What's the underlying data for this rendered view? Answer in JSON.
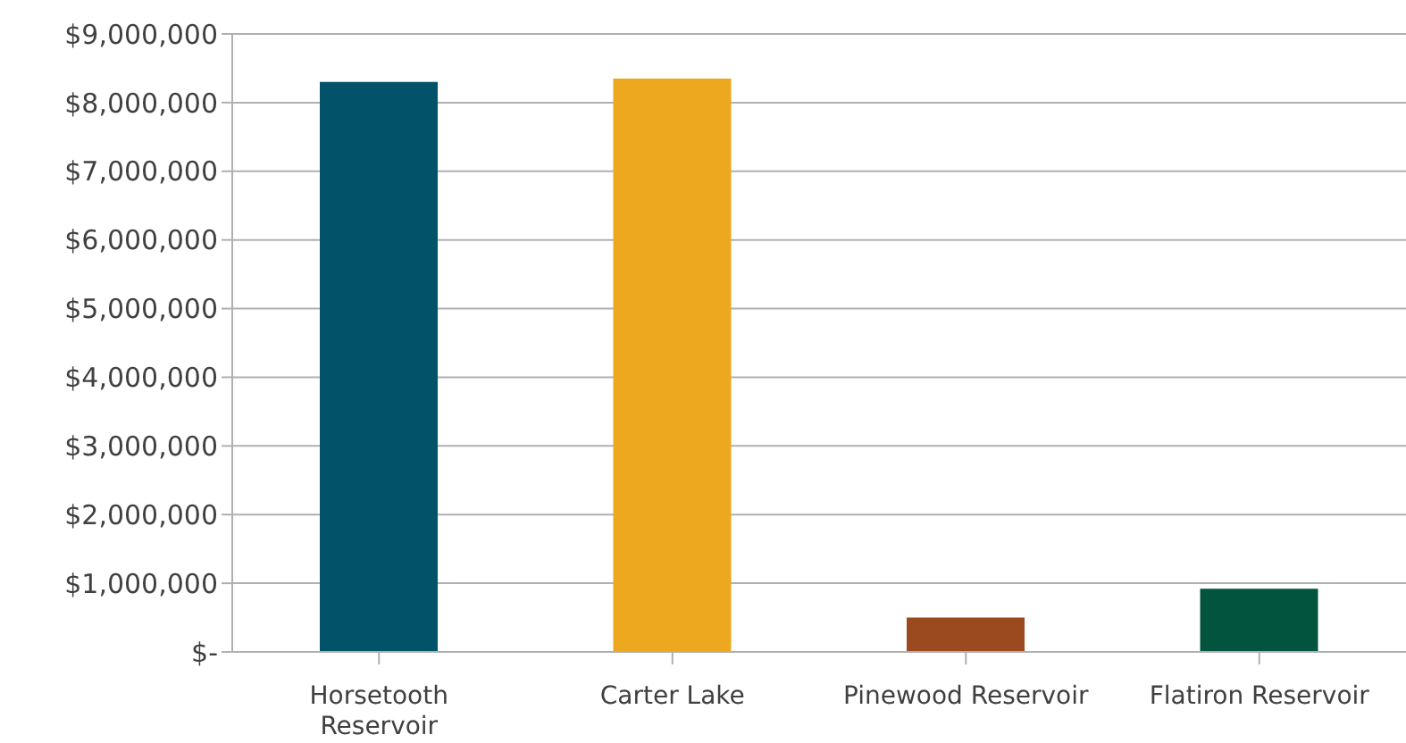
{
  "chart_data": {
    "type": "bar",
    "categories": [
      "Horsetooth Reservoir",
      "Carter Lake",
      "Pinewood Reservoir",
      "Flatiron Reservoir"
    ],
    "values": [
      8300000,
      8350000,
      500000,
      920000
    ],
    "colors": [
      "#02526a",
      "#eea820",
      "#9b4a20",
      "#02543f"
    ],
    "ylim": [
      0,
      9000000
    ],
    "yticks": [
      {
        "value": 0,
        "label": "$-"
      },
      {
        "value": 1000000,
        "label": "$1,000,000"
      },
      {
        "value": 2000000,
        "label": "$2,000,000"
      },
      {
        "value": 3000000,
        "label": "$3,000,000"
      },
      {
        "value": 4000000,
        "label": "$4,000,000"
      },
      {
        "value": 5000000,
        "label": "$5,000,000"
      },
      {
        "value": 6000000,
        "label": "$6,000,000"
      },
      {
        "value": 7000000,
        "label": "$7,000,000"
      },
      {
        "value": 8000000,
        "label": "$8,000,000"
      },
      {
        "value": 9000000,
        "label": "$9,000,000"
      }
    ],
    "grid": "y"
  }
}
